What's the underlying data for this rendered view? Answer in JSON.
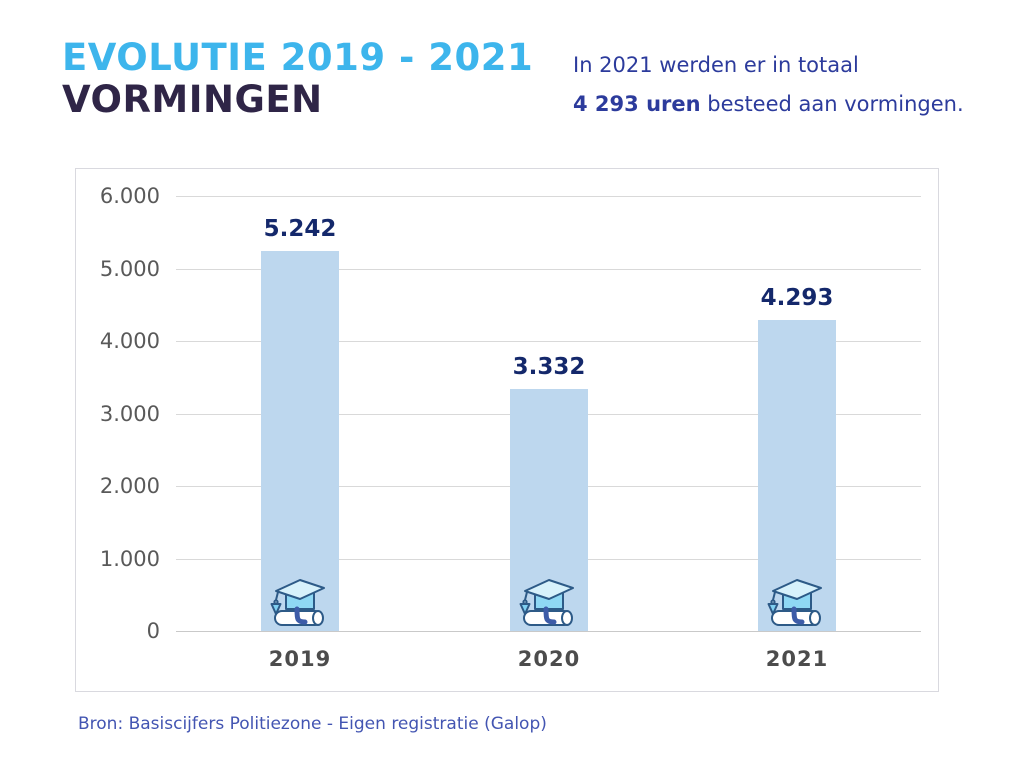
{
  "header": {
    "title_line1": "EVOLUTIE 2019 - 2021",
    "title_line2": "VORMINGEN",
    "intro_line1": "In 2021 werden er in totaal",
    "intro_bold": "4 293 uren",
    "intro_rest": " besteed aan vormingen."
  },
  "chart_data": {
    "type": "bar",
    "categories": [
      "2019",
      "2020",
      "2021"
    ],
    "values": [
      5242,
      3332,
      4293
    ],
    "value_labels": [
      "5.242",
      "3.332",
      "4.293"
    ],
    "ytick_labels": [
      "6.000",
      "5.000",
      "4.000",
      "3.000",
      "2.000",
      "1.000",
      "0"
    ],
    "ylim": [
      0,
      6000
    ],
    "grid": "horizontal",
    "legend": "none",
    "bar_color": "#BDD7EE",
    "value_label_color": "#14286B",
    "icon": "graduation-cap-diploma"
  },
  "footer": {
    "source": "Bron: Basiscijfers Politiezone - Eigen registratie (Galop)"
  },
  "colors": {
    "title_accent": "#3DB5EC",
    "title_dark": "#2F2547",
    "intro_text": "#2C3B9C",
    "source_text": "#4355B2",
    "axis_text": "#595959",
    "gridline": "#D9D9D9"
  }
}
